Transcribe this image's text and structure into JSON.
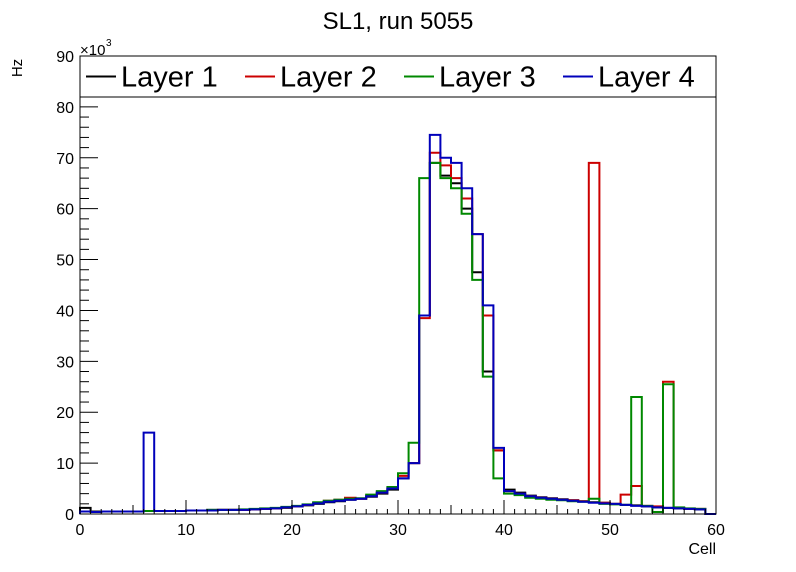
{
  "chart_data": {
    "type": "histogram",
    "title": "SL1, run 5055",
    "xlabel": "Cell",
    "ylabel": "Hz",
    "y_multiplier_label": "×10",
    "y_multiplier_exponent": "3",
    "xlim": [
      0,
      60
    ],
    "ylim": [
      0,
      90
    ],
    "x_ticks": [
      0,
      10,
      20,
      30,
      40,
      50,
      60
    ],
    "y_ticks": [
      0,
      10,
      20,
      30,
      40,
      50,
      60,
      70,
      80,
      90
    ],
    "y_unit_scale": 1000,
    "bin_width": 1,
    "grid": false,
    "legend_position": "top",
    "series": [
      {
        "name": "Layer 1",
        "color": "#000000",
        "values": [
          1.2,
          0.5,
          0.5,
          0.5,
          0.5,
          0.5,
          0.6,
          0.6,
          0.6,
          0.6,
          0.7,
          0.7,
          0.8,
          0.8,
          0.8,
          0.8,
          0.9,
          1.0,
          1.1,
          1.2,
          1.5,
          1.7,
          2.0,
          2.3,
          2.5,
          2.8,
          3.0,
          3.4,
          4.0,
          4.8,
          7.0,
          10.0,
          39.0,
          69.0,
          66.5,
          65.0,
          60.0,
          47.5,
          28.0,
          12.5,
          4.8,
          4.2,
          3.6,
          3.3,
          3.1,
          2.9,
          2.7,
          2.5,
          2.3,
          2.2,
          2.0,
          1.8,
          1.7,
          1.5,
          1.3,
          1.2,
          1.1,
          1.0,
          0.9,
          0.0
        ]
      },
      {
        "name": "Layer 2",
        "color": "#cc0000",
        "values": [
          0.5,
          0.4,
          0.5,
          0.5,
          0.5,
          0.5,
          0.6,
          0.6,
          0.6,
          0.6,
          0.7,
          0.7,
          0.7,
          0.8,
          0.8,
          0.8,
          0.9,
          1.0,
          1.1,
          1.3,
          1.5,
          1.8,
          2.2,
          2.6,
          2.8,
          3.2,
          3.0,
          3.6,
          4.2,
          5.0,
          7.5,
          10.0,
          38.5,
          71.0,
          68.5,
          66.0,
          62.0,
          55.0,
          39.0,
          12.5,
          4.5,
          4.0,
          3.5,
          3.2,
          3.0,
          2.8,
          2.7,
          2.5,
          69.0,
          2.2,
          2.0,
          3.8,
          5.5,
          1.6,
          1.5,
          26.0,
          1.2,
          1.0,
          1.0,
          0.0
        ]
      },
      {
        "name": "Layer 3",
        "color": "#008800",
        "values": [
          0.5,
          0.4,
          0.5,
          0.5,
          0.5,
          0.5,
          0.6,
          0.6,
          0.6,
          0.6,
          0.7,
          0.7,
          0.8,
          0.8,
          0.8,
          0.9,
          1.0,
          1.1,
          1.2,
          1.4,
          1.6,
          1.9,
          2.3,
          2.6,
          2.8,
          3.0,
          3.1,
          3.8,
          4.5,
          5.3,
          8.0,
          14.0,
          66.0,
          69.0,
          66.0,
          64.0,
          59.0,
          46.0,
          27.0,
          7.0,
          4.0,
          3.7,
          3.2,
          3.0,
          2.8,
          2.7,
          2.5,
          2.4,
          3.0,
          2.0,
          1.9,
          1.8,
          23.0,
          1.6,
          0.4,
          25.5,
          1.3,
          1.1,
          1.0,
          0.0
        ]
      },
      {
        "name": "Layer 4",
        "color": "#0000bb",
        "values": [
          0.5,
          0.4,
          0.5,
          0.5,
          0.5,
          0.5,
          16.0,
          0.6,
          0.6,
          0.6,
          0.7,
          0.7,
          0.7,
          0.8,
          0.8,
          0.8,
          0.9,
          1.0,
          1.1,
          1.3,
          1.5,
          1.8,
          2.1,
          2.4,
          2.6,
          2.8,
          3.0,
          3.5,
          4.2,
          5.0,
          7.0,
          10.0,
          39.0,
          74.5,
          70.0,
          69.0,
          64.0,
          55.0,
          41.0,
          13.0,
          4.5,
          4.0,
          3.5,
          3.2,
          3.0,
          2.8,
          2.6,
          2.4,
          2.2,
          2.1,
          2.0,
          1.8,
          1.6,
          1.5,
          1.3,
          1.2,
          1.1,
          1.0,
          0.9,
          0.0
        ]
      }
    ]
  }
}
